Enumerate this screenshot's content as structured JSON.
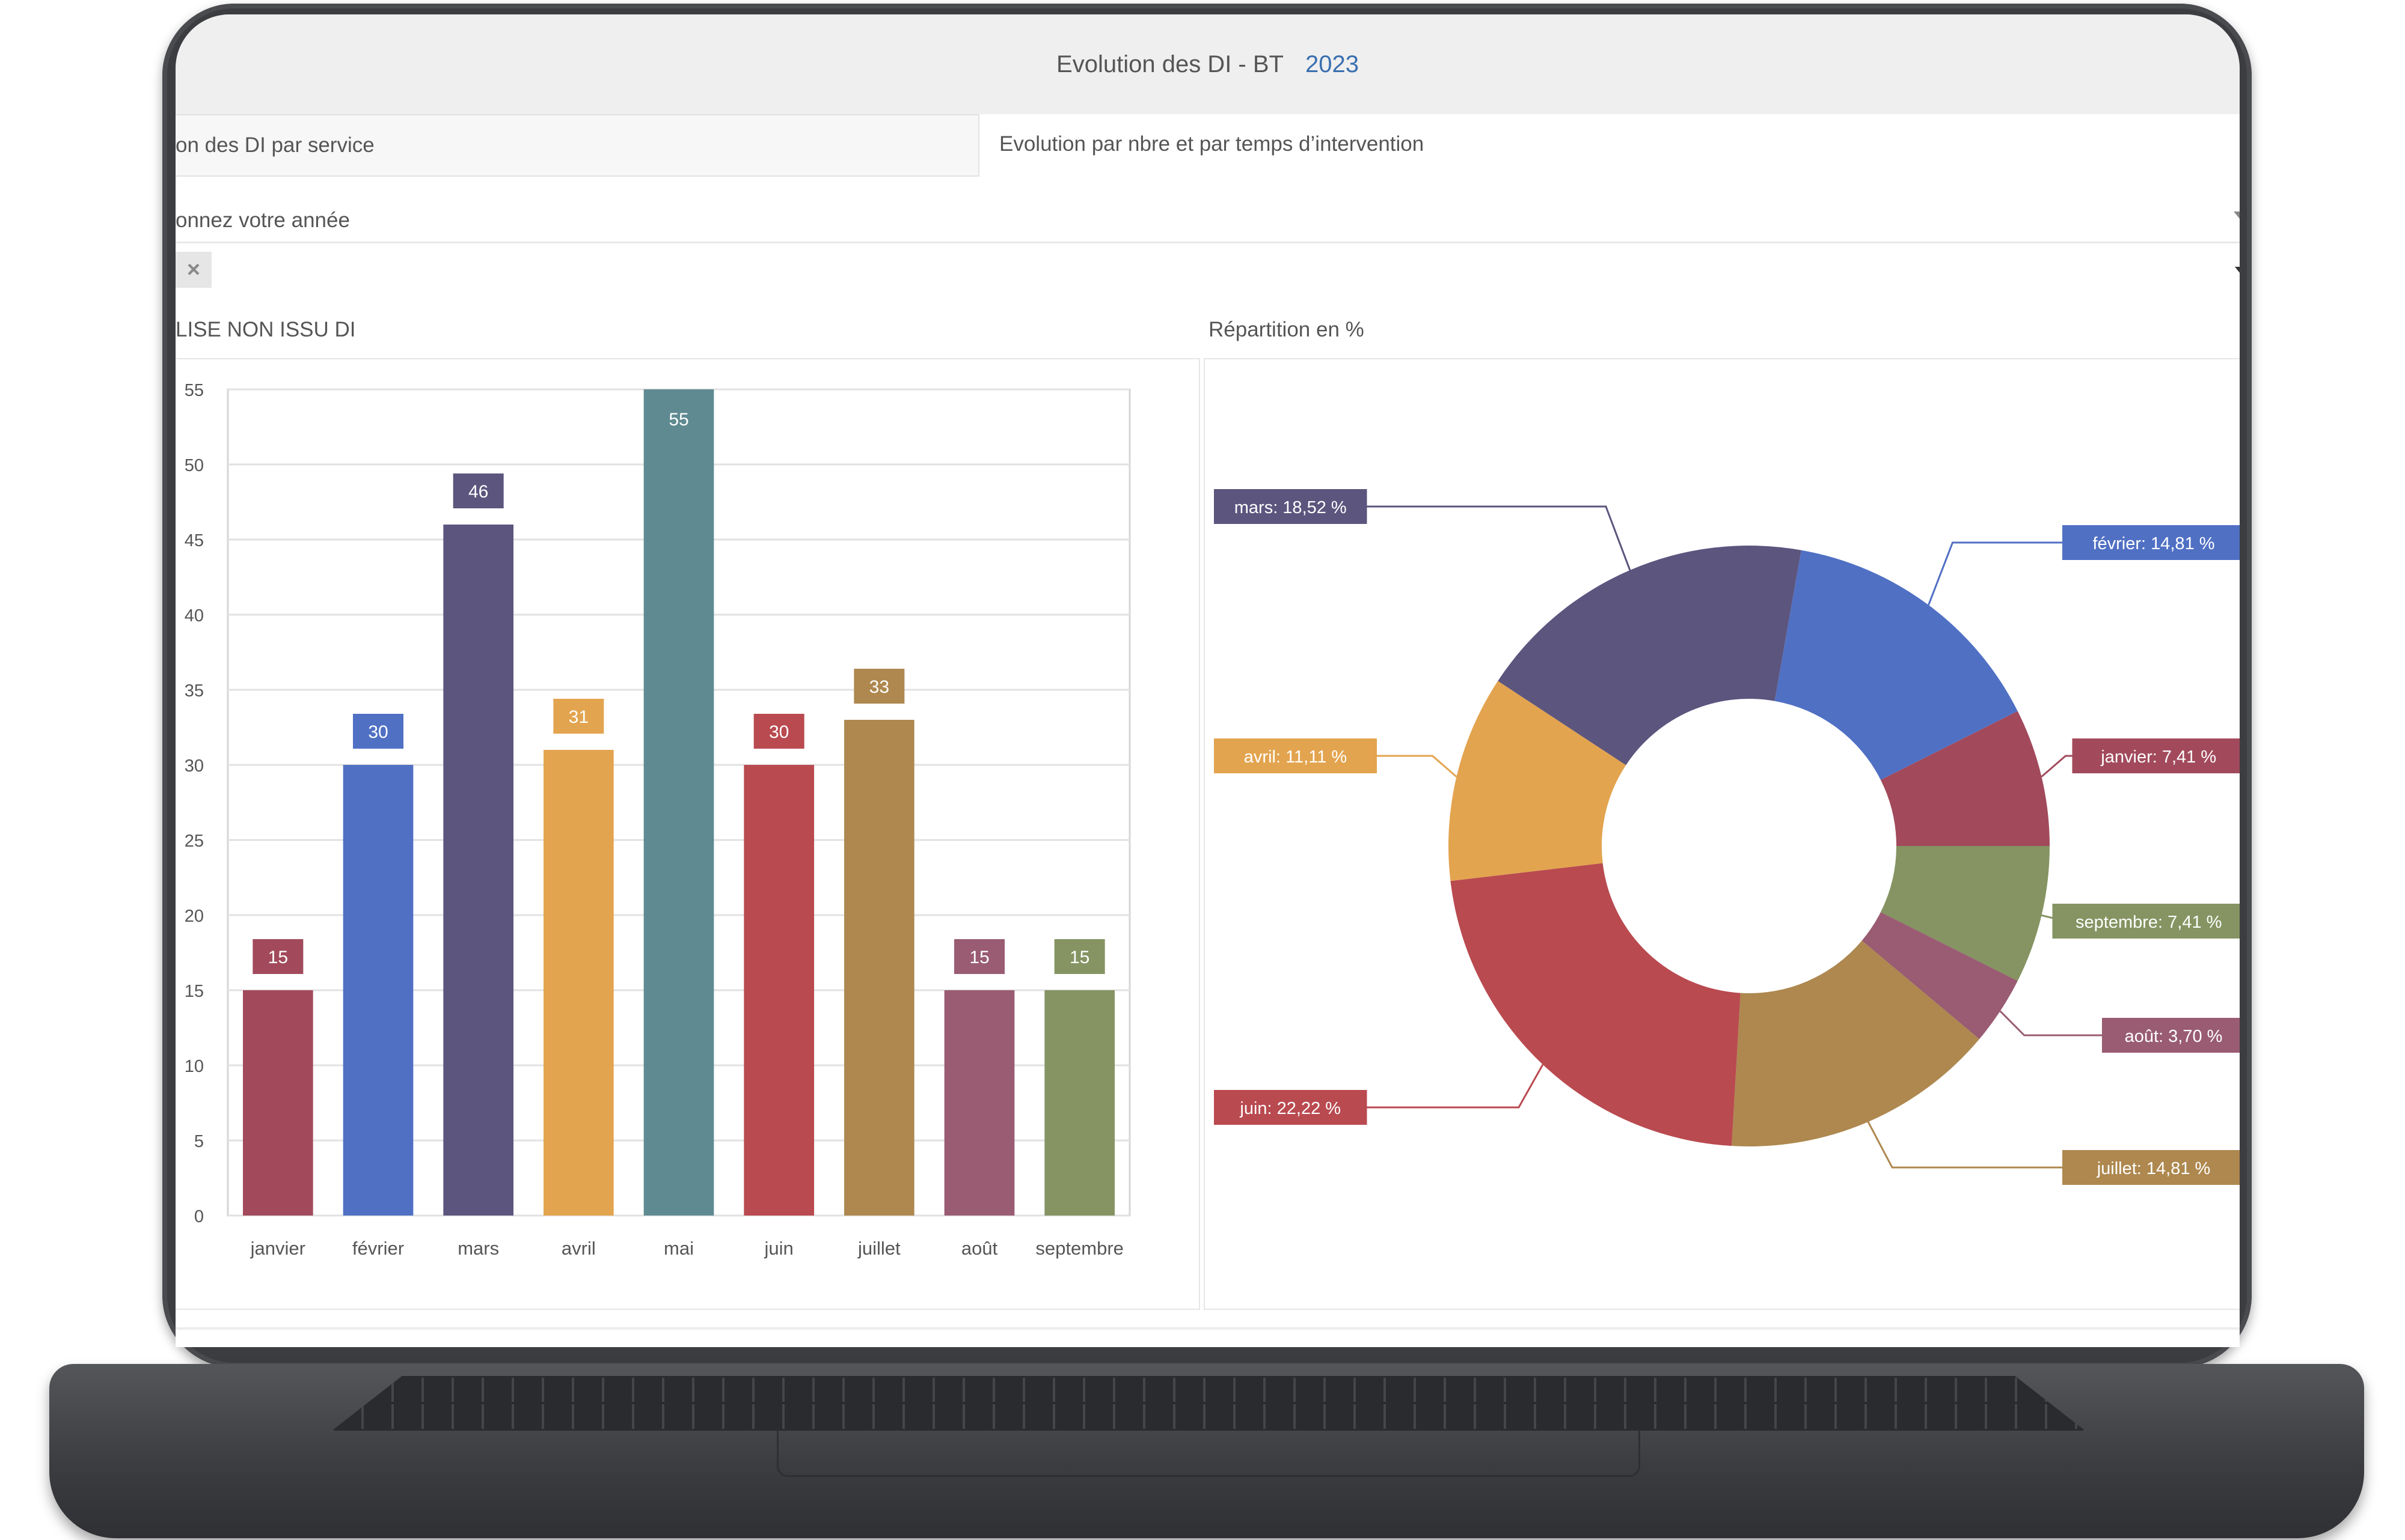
{
  "header": {
    "title": "Evolution des DI - BT",
    "year": "2023"
  },
  "tabs": [
    {
      "label": "on des DI par service"
    },
    {
      "label": "Evolution par nbre et par temps d’intervention"
    }
  ],
  "year_select": {
    "placeholder": "onnez votre année"
  },
  "filter": {
    "clear_label": "×"
  },
  "bar_panel": {
    "title": "LISE NON ISSU DI"
  },
  "pie_panel": {
    "title": "Répartition en %"
  },
  "chart_data": [
    {
      "type": "bar",
      "title": "LISE NON ISSU DI",
      "categories": [
        "janvier",
        "février",
        "mars",
        "avril",
        "mai",
        "juin",
        "juillet",
        "août",
        "septembre"
      ],
      "values": [
        15,
        30,
        46,
        31,
        55,
        30,
        33,
        15,
        15
      ],
      "colors": [
        "#a24a5c",
        "#5070c4",
        "#5c557e",
        "#e3a44f",
        "#5f8a91",
        "#b94a50",
        "#ae884f",
        "#995c72",
        "#859462"
      ],
      "ylim": [
        0,
        55
      ],
      "yticks": [
        0,
        5,
        10,
        15,
        20,
        25,
        30,
        35,
        40,
        45,
        50,
        55
      ],
      "grid": true,
      "data_labels": true
    },
    {
      "type": "pie",
      "donut": true,
      "title": "Répartition en %",
      "slices": [
        {
          "label": "février",
          "value": 14.81,
          "text": "février: 14,81 %",
          "color": "#5070c4",
          "side": "right"
        },
        {
          "label": "janvier",
          "value": 7.41,
          "text": "janvier: 7,41 %",
          "color": "#a24a5c",
          "side": "right"
        },
        {
          "label": "septembre",
          "value": 7.41,
          "text": "septembre: 7,41 %",
          "color": "#859462",
          "side": "right"
        },
        {
          "label": "août",
          "value": 3.7,
          "text": "août: 3,70 %",
          "color": "#995c72",
          "side": "right"
        },
        {
          "label": "juillet",
          "value": 14.81,
          "text": "juillet: 14,81 %",
          "color": "#ae884f",
          "side": "right"
        },
        {
          "label": "juin",
          "value": 22.22,
          "text": "juin: 22,22 %",
          "color": "#b94a50",
          "side": "left"
        },
        {
          "label": "avril",
          "value": 11.11,
          "text": "avril: 11,11 %",
          "color": "#e3a44f",
          "side": "left"
        },
        {
          "label": "mars",
          "value": 18.52,
          "text": "mars: 18,52 %",
          "color": "#5c557e",
          "side": "left"
        }
      ]
    }
  ]
}
